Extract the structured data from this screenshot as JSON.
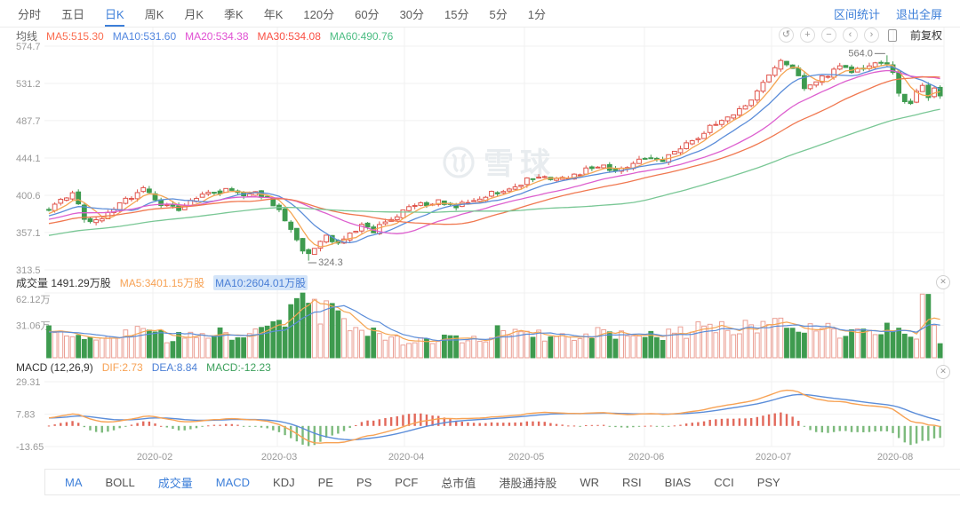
{
  "toolbar": {
    "period_tabs": [
      {
        "label": "分时",
        "active": false
      },
      {
        "label": "五日",
        "active": false
      },
      {
        "label": "日K",
        "active": true
      },
      {
        "label": "周K",
        "active": false
      },
      {
        "label": "月K",
        "active": false
      },
      {
        "label": "季K",
        "active": false
      },
      {
        "label": "年K",
        "active": false
      },
      {
        "label": "120分",
        "active": false
      },
      {
        "label": "60分",
        "active": false
      },
      {
        "label": "30分",
        "active": false
      },
      {
        "label": "15分",
        "active": false
      },
      {
        "label": "5分",
        "active": false
      },
      {
        "label": "1分",
        "active": false
      }
    ],
    "links": [
      "区间统计",
      "退出全屏"
    ]
  },
  "controls": {
    "undo": "↺",
    "zoom_in": "+",
    "zoom_out": "−",
    "pan_left": "‹",
    "pan_right": "›",
    "adjust": "前复权"
  },
  "ma_legend": {
    "title": "均线",
    "items": [
      {
        "text": "MA5:515.30",
        "color": "#fb6d50"
      },
      {
        "text": "MA10:531.60",
        "color": "#5287e0"
      },
      {
        "text": "MA20:534.38",
        "color": "#e04fd2"
      },
      {
        "text": "MA30:534.08",
        "color": "#fa5044"
      },
      {
        "text": "MA60:490.76",
        "color": "#4cbd83"
      }
    ]
  },
  "volume_legend": {
    "title": "成交量 1491.29万股",
    "ma5": {
      "text": "MA5:3401.15万股",
      "color": "#f7a254"
    },
    "ma10": {
      "text": "MA10:2604.01万股",
      "color": "#4b7fd6",
      "highlight": "#d4e5f9"
    }
  },
  "macd_legend": {
    "title": "MACD (12,26,9)",
    "dif": {
      "text": "DIF:2.73",
      "color": "#f7a254"
    },
    "dea": {
      "text": "DEA:8.84",
      "color": "#4b7fd6"
    },
    "macd": {
      "text": "MACD:-12.23",
      "color": "#3da05c"
    }
  },
  "indicator_tabs": {
    "items": [
      {
        "label": "MA",
        "active": true
      },
      {
        "label": "BOLL",
        "active": false
      },
      {
        "label": "成交量",
        "active": true
      },
      {
        "label": "MACD",
        "active": true
      },
      {
        "label": "KDJ",
        "active": false
      },
      {
        "label": "PE",
        "active": false
      },
      {
        "label": "PS",
        "active": false
      },
      {
        "label": "PCF",
        "active": false
      },
      {
        "label": "总市值",
        "active": false
      },
      {
        "label": "港股通持股",
        "active": false
      },
      {
        "label": "WR",
        "active": false
      },
      {
        "label": "RSI",
        "active": false
      },
      {
        "label": "BIAS",
        "active": false
      },
      {
        "label": "CCI",
        "active": false
      },
      {
        "label": "PSY",
        "active": false
      }
    ]
  },
  "watermark": "雪球",
  "chart_data": {
    "type": "candlestick",
    "panes": [
      "price+MA",
      "volume",
      "MACD"
    ],
    "price_axis": {
      "ticks": [
        574.7,
        531.2,
        487.7,
        444.1,
        400.6,
        357.1,
        313.5
      ],
      "range": [
        313.5,
        574.7
      ]
    },
    "volume_axis": {
      "ticks": [
        "62.12万",
        "31.06万"
      ],
      "tick_values": [
        62.12,
        31.06
      ],
      "unit": "万股"
    },
    "macd_axis": {
      "ticks": [
        29.31,
        7.83,
        -13.65
      ]
    },
    "x_labels": [
      "2020-02",
      "2020-03",
      "2020-04",
      "2020-05",
      "2020-06",
      "2020-07",
      "2020-08"
    ],
    "annotations": {
      "low": "324.3",
      "high": "564.0"
    },
    "last_values": {
      "ma5": 515.3,
      "ma10": 531.6,
      "ma20": 534.38,
      "ma30": 534.08,
      "ma60": 490.76,
      "volume": "1491.29万股",
      "vol_ma5": "3401.15万股",
      "vol_ma10": "2604.01万股",
      "dif": 2.73,
      "dea": 8.84,
      "macd_hist": -12.23
    },
    "candle_count": 152,
    "seed": 11,
    "force_low": {
      "index": 44,
      "value": 324.3
    },
    "force_high": {
      "index": 142,
      "value": 564.0
    },
    "close_keyframes": [
      [
        0,
        384
      ],
      [
        2,
        396
      ],
      [
        4,
        403
      ],
      [
        6,
        374
      ],
      [
        8,
        370
      ],
      [
        10,
        382
      ],
      [
        12,
        392
      ],
      [
        14,
        399
      ],
      [
        16,
        410
      ],
      [
        19,
        391
      ],
      [
        22,
        385
      ],
      [
        25,
        398
      ],
      [
        28,
        404
      ],
      [
        31,
        407
      ],
      [
        33,
        401
      ],
      [
        35,
        404
      ],
      [
        37,
        397
      ],
      [
        39,
        383
      ],
      [
        41,
        360
      ],
      [
        43,
        337
      ],
      [
        44,
        330
      ],
      [
        45,
        341
      ],
      [
        47,
        352
      ],
      [
        49,
        345
      ],
      [
        51,
        357
      ],
      [
        53,
        365
      ],
      [
        55,
        359
      ],
      [
        57,
        369
      ],
      [
        60,
        382
      ],
      [
        63,
        390
      ],
      [
        66,
        393
      ],
      [
        69,
        389
      ],
      [
        72,
        397
      ],
      [
        75,
        403
      ],
      [
        78,
        407
      ],
      [
        81,
        419
      ],
      [
        84,
        423
      ],
      [
        87,
        419
      ],
      [
        90,
        427
      ],
      [
        93,
        435
      ],
      [
        96,
        431
      ],
      [
        99,
        438
      ],
      [
        102,
        445
      ],
      [
        104,
        441
      ],
      [
        106,
        454
      ],
      [
        108,
        461
      ],
      [
        110,
        469
      ],
      [
        112,
        481
      ],
      [
        114,
        489
      ],
      [
        116,
        496
      ],
      [
        118,
        506
      ],
      [
        120,
        521
      ],
      [
        122,
        541
      ],
      [
        124,
        556
      ],
      [
        126,
        549
      ],
      [
        128,
        528
      ],
      [
        130,
        533
      ],
      [
        132,
        541
      ],
      [
        134,
        549
      ],
      [
        136,
        545
      ],
      [
        138,
        551
      ],
      [
        140,
        553
      ],
      [
        142,
        557
      ],
      [
        143,
        546
      ],
      [
        144,
        521
      ],
      [
        145,
        511
      ],
      [
        146,
        506
      ],
      [
        147,
        521
      ],
      [
        148,
        531
      ],
      [
        149,
        517
      ],
      [
        150,
        527
      ],
      [
        151,
        519
      ]
    ],
    "volume_keyframes": [
      [
        0,
        26
      ],
      [
        4,
        21
      ],
      [
        8,
        18
      ],
      [
        12,
        20
      ],
      [
        16,
        31
      ],
      [
        20,
        18
      ],
      [
        24,
        22
      ],
      [
        28,
        26
      ],
      [
        32,
        20
      ],
      [
        36,
        25
      ],
      [
        38,
        29
      ],
      [
        40,
        36
      ],
      [
        42,
        50
      ],
      [
        43,
        62
      ],
      [
        44,
        54
      ],
      [
        45,
        46
      ],
      [
        46,
        41
      ],
      [
        47,
        58
      ],
      [
        48,
        50
      ],
      [
        50,
        38
      ],
      [
        52,
        30
      ],
      [
        54,
        26
      ],
      [
        56,
        21
      ],
      [
        58,
        18
      ],
      [
        60,
        16
      ],
      [
        62,
        14
      ],
      [
        64,
        18
      ],
      [
        66,
        16
      ],
      [
        68,
        20
      ],
      [
        70,
        18
      ],
      [
        72,
        22
      ],
      [
        74,
        20
      ],
      [
        76,
        27
      ],
      [
        78,
        22
      ],
      [
        80,
        29
      ],
      [
        82,
        24
      ],
      [
        84,
        20
      ],
      [
        86,
        18
      ],
      [
        88,
        24
      ],
      [
        90,
        20
      ],
      [
        92,
        22
      ],
      [
        94,
        27
      ],
      [
        96,
        22
      ],
      [
        98,
        20
      ],
      [
        100,
        24
      ],
      [
        102,
        26
      ],
      [
        104,
        22
      ],
      [
        106,
        28
      ],
      [
        108,
        24
      ],
      [
        110,
        31
      ],
      [
        112,
        33
      ],
      [
        114,
        28
      ],
      [
        116,
        26
      ],
      [
        118,
        31
      ],
      [
        120,
        29
      ],
      [
        122,
        33
      ],
      [
        124,
        37
      ],
      [
        126,
        31
      ],
      [
        128,
        28
      ],
      [
        130,
        26
      ],
      [
        132,
        29
      ],
      [
        134,
        24
      ],
      [
        136,
        26
      ],
      [
        138,
        22
      ],
      [
        140,
        25
      ],
      [
        142,
        27
      ],
      [
        144,
        31
      ],
      [
        146,
        24
      ],
      [
        147,
        20
      ],
      [
        148,
        62
      ],
      [
        149,
        49
      ],
      [
        150,
        26
      ],
      [
        151,
        15
      ]
    ],
    "pre_window": {
      "count": 60,
      "start": 326,
      "end": 380
    },
    "colors": {
      "up": "#e0544b",
      "up_fill": "#ffffff",
      "down": "#3e9b4f",
      "vol_up": "#eb9f94",
      "ma5": "#f5a553",
      "ma10": "#5b8dd9",
      "ma20": "#dd60cf",
      "ma30": "#f07850",
      "ma60": "#79c795",
      "dif": "#f7a254",
      "dea": "#5b8dd9",
      "hist_up": "#e2695b",
      "hist_down": "#7cba7c",
      "grid": "#f1f1f1",
      "axis_text": "#999999",
      "annotation": "#777777",
      "watermark": "#e8ecef"
    }
  }
}
